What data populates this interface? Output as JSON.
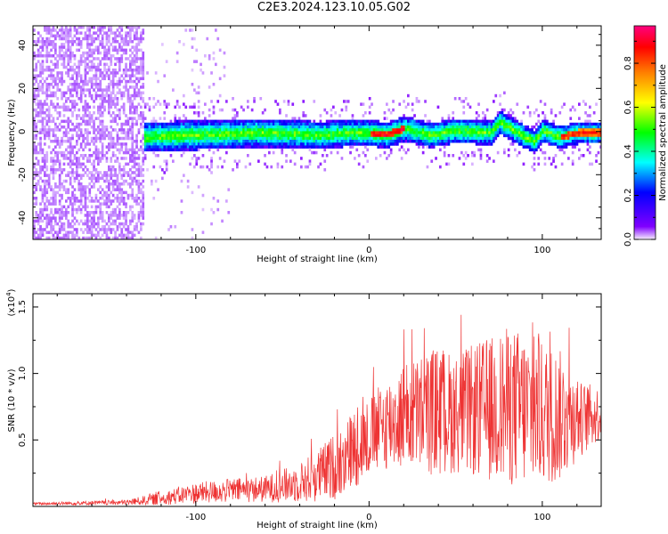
{
  "figure": {
    "title": "C2E3.2024.123.10.05.G02"
  },
  "chart_data": [
    {
      "type": "heatmap",
      "title": "C2E3.2024.123.10.05.G02",
      "xlabel": "Height of straight line (km)",
      "ylabel": "Frequency (Hz)",
      "xlim": [
        -194,
        134
      ],
      "ylim": [
        -50,
        49
      ],
      "xticks": [
        -100,
        0,
        100
      ],
      "xtick_labels": [
        "-100",
        "0",
        "100"
      ],
      "yticks": [
        -40,
        -20,
        0,
        20,
        40
      ],
      "ytick_labels": [
        "-40",
        "-20",
        "0",
        "20",
        "40"
      ],
      "ridge": {
        "x": [
          -130,
          -100,
          -60,
          -30,
          -10,
          0,
          10,
          20,
          35,
          50,
          70,
          75,
          90,
          95,
          100,
          110,
          120,
          134
        ],
        "y": [
          -2,
          -1,
          0,
          -1,
          0,
          0,
          -1,
          2,
          -1,
          1,
          0,
          5,
          -2,
          -4,
          1,
          -2,
          0,
          0
        ]
      },
      "noise_region_x": [
        -194,
        -130
      ],
      "colorbar": {
        "label": "Normalized spectral amplitude",
        "ticks": [
          0.0,
          0.2,
          0.4,
          0.6,
          0.8
        ],
        "tick_labels": [
          "0.0",
          "0.2",
          "0.4",
          "0.6",
          "0.8"
        ],
        "range": [
          0,
          0.97
        ],
        "colormap": [
          "#f7f0ff",
          "#8000ff",
          "#0000ff",
          "#00ffff",
          "#00ff00",
          "#ffff00",
          "#ff8000",
          "#ff0000",
          "#ff0080"
        ]
      }
    },
    {
      "type": "line",
      "xlabel": "Height of straight line (km)",
      "ylabel": "SNR (10 * v/v)",
      "scale_label": "(x10",
      "scale_exp": "4",
      "scale_close": ")",
      "xlim": [
        -194,
        134
      ],
      "ylim": [
        0,
        16000
      ],
      "xticks": [
        -100,
        0,
        100
      ],
      "xtick_labels": [
        "-100",
        "0",
        "100"
      ],
      "yticks": [
        5000,
        10000,
        15000
      ],
      "ytick_labels": [
        "0.5",
        "1.0",
        "1.5"
      ],
      "color": "#ee3333",
      "envelope": {
        "x": [
          -194,
          -140,
          -120,
          -100,
          -80,
          -60,
          -40,
          -30,
          -20,
          -10,
          0,
          10,
          20,
          30,
          40,
          50,
          60,
          70,
          80,
          90,
          100,
          110,
          115,
          120,
          134
        ],
        "mean": [
          200,
          300,
          600,
          1000,
          1200,
          1300,
          1800,
          2300,
          3000,
          4200,
          5200,
          6200,
          6800,
          7000,
          7200,
          7000,
          7200,
          7300,
          7500,
          7300,
          7000,
          6800,
          7000,
          6500,
          7000
        ],
        "amp": [
          100,
          200,
          500,
          800,
          900,
          1000,
          1500,
          2000,
          2500,
          3000,
          3000,
          3500,
          4000,
          4500,
          5000,
          4500,
          5000,
          5500,
          6000,
          6000,
          5500,
          5000,
          4500,
          3000,
          2000
        ]
      }
    }
  ]
}
